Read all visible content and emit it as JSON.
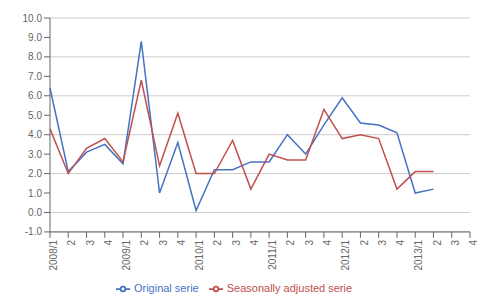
{
  "chart_data": {
    "type": "line",
    "categories": [
      "2008/1",
      "2",
      "3",
      "4",
      "2009/1",
      "2",
      "3",
      "4",
      "2010/1",
      "2",
      "3",
      "4",
      "2011/1",
      "2",
      "3",
      "4",
      "2012/1",
      "2",
      "3",
      "4",
      "2013/1",
      "2",
      "3",
      "4"
    ],
    "series": [
      {
        "name": "Original serie",
        "color": "#4472C4",
        "values": [
          6.4,
          2.1,
          3.1,
          3.5,
          2.5,
          8.8,
          1.0,
          3.6,
          0.1,
          2.2,
          2.2,
          2.6,
          2.6,
          4.0,
          3.0,
          4.5,
          5.9,
          4.6,
          4.5,
          4.1,
          1.0,
          1.2,
          null,
          null
        ]
      },
      {
        "name": "Seasonally adjusted serie",
        "color": "#C0504D",
        "values": [
          4.3,
          2.0,
          3.3,
          3.8,
          2.6,
          6.8,
          2.4,
          5.1,
          2.0,
          2.0,
          3.7,
          1.2,
          3.0,
          2.7,
          2.7,
          5.3,
          3.8,
          4.0,
          3.8,
          1.2,
          2.1,
          2.1,
          null,
          null
        ]
      }
    ],
    "ylim": [
      -1.0,
      10.0
    ],
    "yticks": [
      {
        "value": -1.0,
        "label": "-1.0"
      },
      {
        "value": 0.0,
        "label": "0.0"
      },
      {
        "value": 1.0,
        "label": "1.0"
      },
      {
        "value": 2.0,
        "label": "2.0"
      },
      {
        "value": 3.0,
        "label": "3.0"
      },
      {
        "value": 4.0,
        "label": "4.0"
      },
      {
        "value": 5.0,
        "label": "5.0"
      },
      {
        "value": 6.0,
        "label": "6.0"
      },
      {
        "value": 7.0,
        "label": "7.0"
      },
      {
        "value": 8.0,
        "label": "8.0"
      },
      {
        "value": 9.0,
        "label": "9.0"
      },
      {
        "value": 10.0,
        "label": "10.0"
      }
    ],
    "grid": true,
    "legend": "bottom"
  }
}
